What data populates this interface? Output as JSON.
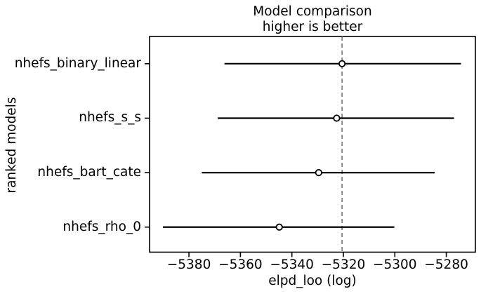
{
  "chart_data": {
    "type": "scatter",
    "subtype": "horizontal-errorbar-forest",
    "title": "Model comparison",
    "subtitle": "higher is better",
    "xlabel": "elpd_loo (log)",
    "ylabel": "ranked models",
    "categories": [
      "nhefs_binary_linear",
      "nhefs_s_s",
      "nhefs_bart_cate",
      "nhefs_rho_0"
    ],
    "series": [
      {
        "name": "elpd_loo",
        "marker": "open-circle",
        "values": [
          -5320.5,
          -5322.6,
          -5329.6,
          -5344.9
        ],
        "error_low": [
          -5366.2,
          -5368.8,
          -5375.0,
          -5390.1
        ],
        "error_high": [
          -5274.3,
          -5277.0,
          -5284.5,
          -5300.2
        ]
      }
    ],
    "ref_line": {
      "x": -5320.5,
      "style": "dashed",
      "color": "#7f7f7f"
    },
    "x_ticks": {
      "values": [
        -5380,
        -5360,
        -5340,
        -5320,
        -5300,
        -5280
      ],
      "labels": [
        "−5380",
        "−5360",
        "−5340",
        "−5320",
        "−5300",
        "−5280"
      ]
    },
    "xlim": [
      -5395.3,
      -5268.7
    ],
    "ylim": [
      -0.46,
      3.5
    ],
    "y_positions": [
      3,
      2,
      1,
      0
    ],
    "grid": false,
    "legend": false,
    "colors": {
      "errorbar": "#000000",
      "marker_fill": "#ffffff",
      "marker_edge": "#000000",
      "spine": "#000000",
      "text": "#000000",
      "background": "#ffffff"
    }
  }
}
